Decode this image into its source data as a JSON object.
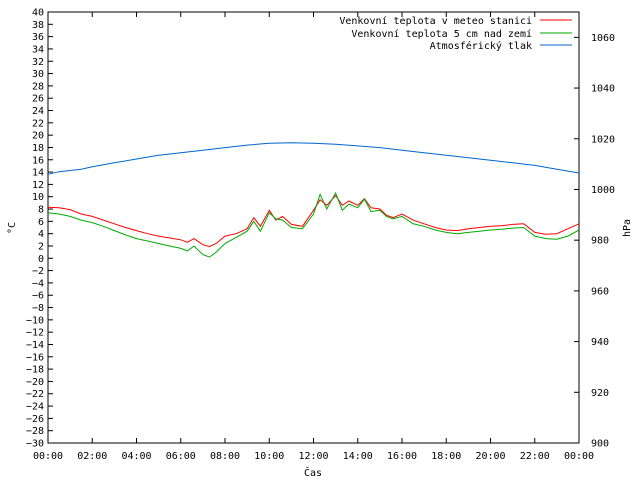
{
  "chart_data": {
    "type": "line",
    "xlabel": "Čas",
    "ylabel_left": "°C",
    "ylabel_right": "hPa",
    "xlim": [
      0,
      24
    ],
    "ylim_left": [
      -30,
      40
    ],
    "ylim_right": [
      900,
      1070
    ],
    "x_ticks": [
      "00:00",
      "02:00",
      "04:00",
      "06:00",
      "08:00",
      "10:00",
      "12:00",
      "14:00",
      "16:00",
      "18:00",
      "20:00",
      "22:00",
      "00:00"
    ],
    "y_ticks_left": [
      40,
      38,
      36,
      34,
      32,
      30,
      28,
      26,
      24,
      22,
      20,
      18,
      16,
      14,
      12,
      10,
      8,
      6,
      4,
      2,
      0,
      -2,
      -4,
      -6,
      -8,
      -10,
      -12,
      -14,
      -16,
      -18,
      -20,
      -22,
      -24,
      -26,
      -28,
      -30
    ],
    "y_ticks_right": [
      1060,
      1040,
      1020,
      1000,
      980,
      960,
      940,
      920,
      900
    ],
    "legend_position": "top-right",
    "series": [
      {
        "name": "Venkovní teplota v meteo stanici",
        "axis": "left",
        "color": "#ff0000",
        "x": [
          0,
          0.5,
          1,
          1.5,
          2,
          2.5,
          3,
          3.5,
          4,
          4.5,
          5,
          5.5,
          6,
          6.3,
          6.6,
          7,
          7.3,
          7.6,
          8,
          8.5,
          9,
          9.3,
          9.6,
          10,
          10.3,
          10.6,
          11,
          11.5,
          12,
          12.3,
          12.6,
          13,
          13.3,
          13.6,
          14,
          14.3,
          14.6,
          15,
          15.3,
          15.6,
          16,
          16.5,
          17,
          17.5,
          18,
          18.5,
          19,
          19.5,
          20,
          20.5,
          21,
          21.5,
          22,
          22.5,
          23,
          23.5,
          24
        ],
        "y": [
          8.3,
          8.2,
          7.9,
          7.2,
          6.8,
          6.2,
          5.6,
          5.0,
          4.5,
          4.0,
          3.6,
          3.3,
          3.0,
          2.6,
          3.2,
          2.2,
          1.9,
          2.4,
          3.6,
          4.0,
          4.8,
          6.6,
          5.2,
          7.8,
          6.2,
          6.8,
          5.5,
          5.2,
          7.8,
          9.5,
          8.6,
          10.2,
          8.6,
          9.3,
          8.6,
          9.7,
          8.2,
          8.0,
          7.0,
          6.6,
          7.2,
          6.2,
          5.6,
          5.0,
          4.6,
          4.5,
          4.8,
          5.0,
          5.2,
          5.3,
          5.5,
          5.6,
          4.2,
          3.9,
          4.0,
          4.8,
          5.6
        ]
      },
      {
        "name": "Venkovní teplota 5 cm nad zemí",
        "axis": "left",
        "color": "#00aa00",
        "x": [
          0,
          0.5,
          1,
          1.5,
          2,
          2.5,
          3,
          3.5,
          4,
          4.5,
          5,
          5.5,
          6,
          6.3,
          6.6,
          7,
          7.3,
          7.6,
          8,
          8.5,
          9,
          9.3,
          9.6,
          10,
          10.3,
          10.6,
          11,
          11.5,
          12,
          12.3,
          12.6,
          13,
          13.3,
          13.6,
          14,
          14.3,
          14.6,
          15,
          15.3,
          15.6,
          16,
          16.5,
          17,
          17.5,
          18,
          18.5,
          19,
          19.5,
          20,
          20.5,
          21,
          21.5,
          22,
          22.5,
          23,
          23.5,
          24
        ],
        "y": [
          7.4,
          7.2,
          6.8,
          6.2,
          5.8,
          5.2,
          4.5,
          3.8,
          3.2,
          2.8,
          2.4,
          2.0,
          1.6,
          1.2,
          2.0,
          0.6,
          0.2,
          1.0,
          2.4,
          3.4,
          4.4,
          6.0,
          4.4,
          7.4,
          6.4,
          6.2,
          5.0,
          4.8,
          7.2,
          10.4,
          8.0,
          10.6,
          7.8,
          8.8,
          8.2,
          9.6,
          7.6,
          7.8,
          6.8,
          6.4,
          6.8,
          5.6,
          5.2,
          4.6,
          4.2,
          4.0,
          4.2,
          4.4,
          4.6,
          4.7,
          4.9,
          5.0,
          3.6,
          3.2,
          3.1,
          3.6,
          4.6
        ]
      },
      {
        "name": "Atmosférický tlak",
        "axis": "right",
        "color": "#0066cc",
        "x": [
          0,
          0.5,
          1,
          1.5,
          2,
          3,
          4,
          5,
          6,
          7,
          8,
          9,
          10,
          11,
          12,
          13,
          14,
          15,
          16,
          17,
          18,
          19,
          20,
          21,
          22,
          23,
          24
        ],
        "y": [
          1006,
          1007,
          1007.5,
          1008,
          1009,
          1010.5,
          1012,
          1013.5,
          1014.5,
          1015.5,
          1016.5,
          1017.5,
          1018.2,
          1018.4,
          1018.2,
          1017.8,
          1017.2,
          1016.5,
          1015.5,
          1014.5,
          1013.5,
          1012.5,
          1011.5,
          1010.5,
          1009.5,
          1008,
          1006.5
        ]
      }
    ]
  }
}
